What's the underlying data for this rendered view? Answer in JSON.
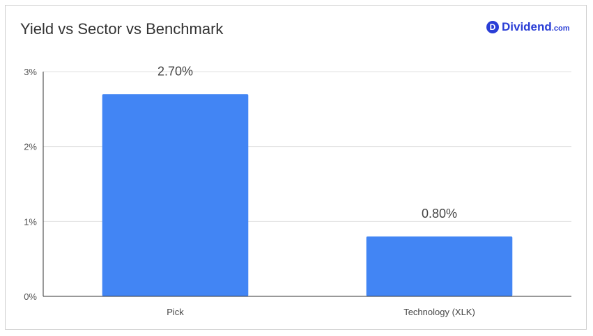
{
  "header": {
    "title": "Yield vs Sector vs Benchmark",
    "brand_badge": "D",
    "brand_name": "Dividend",
    "brand_tld": ".com"
  },
  "colors": {
    "bar": "#4285f4",
    "brand": "#2a3ed6",
    "grid": "#e0e0e0",
    "axis": "#333333"
  },
  "chart_data": {
    "type": "bar",
    "title": "Yield vs Sector vs Benchmark",
    "categories": [
      "Pick",
      "Technology (XLK)"
    ],
    "values": [
      2.7,
      0.8
    ],
    "data_labels": [
      "2.70%",
      "0.80%"
    ],
    "ylim": [
      0,
      3
    ],
    "yticks": [
      0,
      1,
      2,
      3
    ],
    "ytick_labels": [
      "0%",
      "1%",
      "2%",
      "3%"
    ],
    "xlabel": "",
    "ylabel": "",
    "grid": true,
    "legend": "none"
  }
}
